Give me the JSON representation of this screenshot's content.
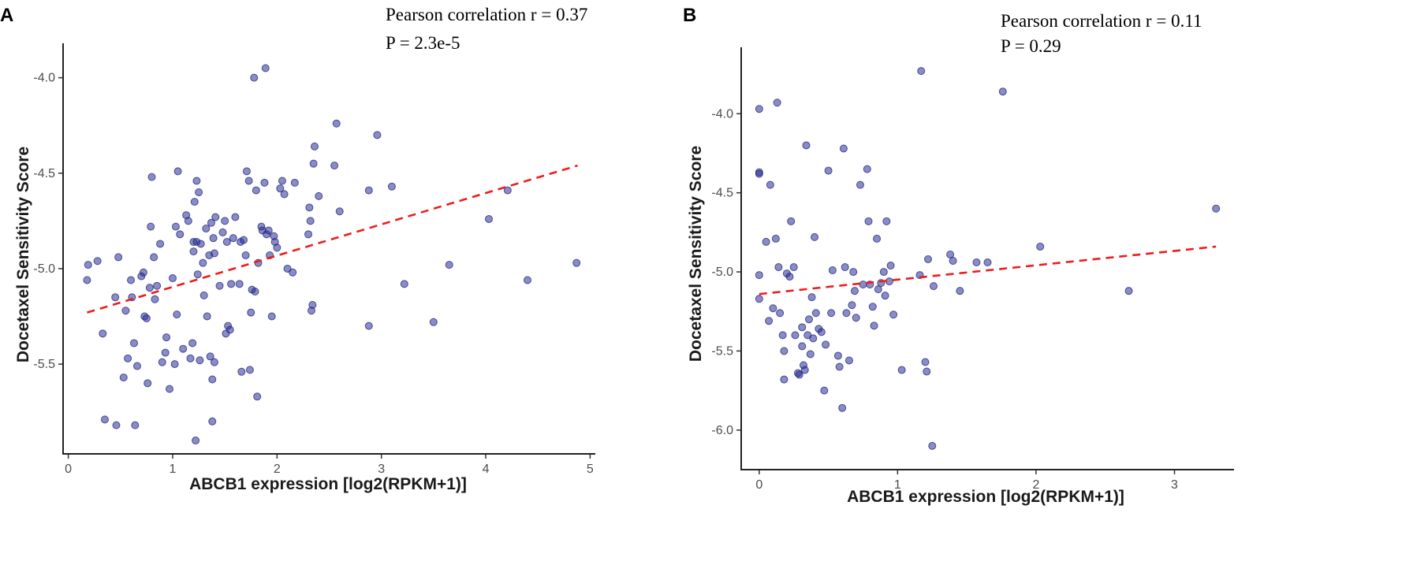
{
  "chart_data": [
    {
      "type": "scatter",
      "panel": "A",
      "xlabel": "ABCB1 expression [log2(RPKM+1)]",
      "ylabel": "Docetaxel Sensitivity Score",
      "annotations": [
        "Pearson correlation r = 0.37",
        "P = 2.3e-5"
      ],
      "xlim": [
        -0.05,
        5.05
      ],
      "ylim": [
        -5.97,
        -3.82
      ],
      "xticks": [
        0,
        1,
        2,
        3,
        4,
        5
      ],
      "yticks": [
        -4.0,
        -4.5,
        -5.0,
        -5.5
      ],
      "ytick_labels": [
        "-4.0",
        "-4.5",
        "-5.0",
        "-5.5"
      ],
      "fit_line": {
        "x": [
          0.18,
          4.88
        ],
        "y": [
          -5.23,
          -4.46
        ],
        "color": "#ee1c1c",
        "style": "dashed"
      },
      "point_color": "#2e3596",
      "points": [
        [
          0.18,
          -5.06
        ],
        [
          0.19,
          -4.98
        ],
        [
          0.28,
          -4.96
        ],
        [
          0.33,
          -5.34
        ],
        [
          0.35,
          -5.79
        ],
        [
          0.45,
          -5.15
        ],
        [
          0.46,
          -5.82
        ],
        [
          0.48,
          -4.94
        ],
        [
          0.53,
          -5.57
        ],
        [
          0.55,
          -5.22
        ],
        [
          0.57,
          -5.47
        ],
        [
          0.6,
          -5.06
        ],
        [
          0.61,
          -5.15
        ],
        [
          0.63,
          -5.39
        ],
        [
          0.64,
          -5.82
        ],
        [
          0.66,
          -5.51
        ],
        [
          0.7,
          -5.04
        ],
        [
          0.72,
          -5.02
        ],
        [
          0.73,
          -5.25
        ],
        [
          0.75,
          -5.26
        ],
        [
          0.76,
          -5.6
        ],
        [
          0.78,
          -5.1
        ],
        [
          0.79,
          -4.78
        ],
        [
          0.8,
          -4.52
        ],
        [
          0.82,
          -4.94
        ],
        [
          0.83,
          -5.16
        ],
        [
          0.85,
          -5.09
        ],
        [
          0.88,
          -4.87
        ],
        [
          0.9,
          -5.49
        ],
        [
          0.93,
          -5.44
        ],
        [
          0.94,
          -5.36
        ],
        [
          0.97,
          -5.63
        ],
        [
          1.0,
          -5.05
        ],
        [
          1.02,
          -5.5
        ],
        [
          1.03,
          -4.78
        ],
        [
          1.04,
          -5.24
        ],
        [
          1.05,
          -4.49
        ],
        [
          1.07,
          -4.82
        ],
        [
          1.1,
          -5.42
        ],
        [
          1.13,
          -4.72
        ],
        [
          1.15,
          -4.75
        ],
        [
          1.17,
          -5.47
        ],
        [
          1.19,
          -5.39
        ],
        [
          1.2,
          -4.86
        ],
        [
          1.2,
          -4.91
        ],
        [
          1.21,
          -4.65
        ],
        [
          1.22,
          -5.9
        ],
        [
          1.23,
          -4.86
        ],
        [
          1.23,
          -4.54
        ],
        [
          1.24,
          -5.03
        ],
        [
          1.25,
          -4.6
        ],
        [
          1.26,
          -5.48
        ],
        [
          1.27,
          -4.87
        ],
        [
          1.29,
          -4.97
        ],
        [
          1.3,
          -5.14
        ],
        [
          1.32,
          -4.79
        ],
        [
          1.33,
          -5.25
        ],
        [
          1.35,
          -4.93
        ],
        [
          1.36,
          -5.46
        ],
        [
          1.37,
          -4.76
        ],
        [
          1.38,
          -5.8
        ],
        [
          1.38,
          -5.58
        ],
        [
          1.39,
          -4.84
        ],
        [
          1.4,
          -4.92
        ],
        [
          1.4,
          -5.49
        ],
        [
          1.41,
          -4.73
        ],
        [
          1.45,
          -5.09
        ],
        [
          1.48,
          -4.81
        ],
        [
          1.5,
          -4.75
        ],
        [
          1.51,
          -5.34
        ],
        [
          1.52,
          -4.86
        ],
        [
          1.53,
          -5.3
        ],
        [
          1.55,
          -5.32
        ],
        [
          1.56,
          -5.08
        ],
        [
          1.58,
          -4.84
        ],
        [
          1.6,
          -4.73
        ],
        [
          1.64,
          -5.08
        ],
        [
          1.65,
          -4.86
        ],
        [
          1.66,
          -5.54
        ],
        [
          1.68,
          -4.85
        ],
        [
          1.7,
          -4.93
        ],
        [
          1.71,
          -4.49
        ],
        [
          1.73,
          -4.54
        ],
        [
          1.74,
          -5.53
        ],
        [
          1.75,
          -5.23
        ],
        [
          1.76,
          -5.11
        ],
        [
          1.78,
          -4.0
        ],
        [
          1.79,
          -5.12
        ],
        [
          1.8,
          -4.59
        ],
        [
          1.81,
          -5.67
        ],
        [
          1.82,
          -4.97
        ],
        [
          1.85,
          -4.78
        ],
        [
          1.86,
          -4.8
        ],
        [
          1.88,
          -4.55
        ],
        [
          1.89,
          -3.95
        ],
        [
          1.9,
          -4.82
        ],
        [
          1.92,
          -4.8
        ],
        [
          1.93,
          -4.93
        ],
        [
          1.95,
          -5.25
        ],
        [
          1.97,
          -4.83
        ],
        [
          1.98,
          -4.86
        ],
        [
          2.0,
          -4.89
        ],
        [
          2.03,
          -4.58
        ],
        [
          2.05,
          -4.54
        ],
        [
          2.07,
          -4.61
        ],
        [
          2.1,
          -5.0
        ],
        [
          2.15,
          -5.02
        ],
        [
          2.17,
          -4.55
        ],
        [
          2.3,
          -4.82
        ],
        [
          2.31,
          -4.68
        ],
        [
          2.32,
          -4.75
        ],
        [
          2.33,
          -5.22
        ],
        [
          2.34,
          -5.19
        ],
        [
          2.35,
          -4.45
        ],
        [
          2.36,
          -4.36
        ],
        [
          2.4,
          -4.62
        ],
        [
          2.55,
          -4.46
        ],
        [
          2.57,
          -4.24
        ],
        [
          2.6,
          -4.7
        ],
        [
          2.88,
          -4.59
        ],
        [
          2.88,
          -5.3
        ],
        [
          2.96,
          -4.3
        ],
        [
          3.1,
          -4.57
        ],
        [
          3.22,
          -5.08
        ],
        [
          3.5,
          -5.28
        ],
        [
          3.65,
          -4.98
        ],
        [
          4.03,
          -4.74
        ],
        [
          4.21,
          -4.59
        ],
        [
          4.4,
          -5.06
        ],
        [
          4.87,
          -4.97
        ]
      ]
    },
    {
      "type": "scatter",
      "panel": "B",
      "xlabel": "ABCB1 expression [log2(RPKM+1)]",
      "ylabel": "Docetaxel Sensitivity Score",
      "annotations": [
        "Pearson correlation r = 0.11",
        "P = 0.29"
      ],
      "xlim": [
        -0.13,
        3.43
      ],
      "ylim": [
        -6.25,
        -3.58
      ],
      "xticks": [
        0,
        1,
        2,
        3
      ],
      "yticks": [
        -4.0,
        -4.5,
        -5.0,
        -5.5,
        -6.0
      ],
      "ytick_labels": [
        "-4.0",
        "-4.5",
        "-5.0",
        "-5.5",
        "-6.0"
      ],
      "fit_line": {
        "x": [
          0.0,
          3.3
        ],
        "y": [
          -5.14,
          -4.84
        ],
        "color": "#ee1c1c",
        "style": "dashed"
      },
      "point_color": "#2e3596",
      "points": [
        [
          0.0,
          -3.97
        ],
        [
          0.0,
          -4.37
        ],
        [
          0.0,
          -4.38
        ],
        [
          0.0,
          -5.02
        ],
        [
          0.0,
          -5.17
        ],
        [
          0.05,
          -4.81
        ],
        [
          0.07,
          -5.31
        ],
        [
          0.08,
          -4.45
        ],
        [
          0.1,
          -5.23
        ],
        [
          0.12,
          -4.79
        ],
        [
          0.13,
          -3.93
        ],
        [
          0.14,
          -4.97
        ],
        [
          0.15,
          -5.26
        ],
        [
          0.17,
          -5.4
        ],
        [
          0.18,
          -5.68
        ],
        [
          0.18,
          -5.5
        ],
        [
          0.2,
          -5.01
        ],
        [
          0.22,
          -5.03
        ],
        [
          0.23,
          -4.68
        ],
        [
          0.25,
          -4.97
        ],
        [
          0.26,
          -5.4
        ],
        [
          0.28,
          -5.64
        ],
        [
          0.29,
          -5.65
        ],
        [
          0.31,
          -5.47
        ],
        [
          0.31,
          -5.35
        ],
        [
          0.32,
          -5.59
        ],
        [
          0.33,
          -5.62
        ],
        [
          0.34,
          -4.2
        ],
        [
          0.35,
          -5.4
        ],
        [
          0.36,
          -5.3
        ],
        [
          0.37,
          -5.52
        ],
        [
          0.38,
          -5.16
        ],
        [
          0.39,
          -5.42
        ],
        [
          0.4,
          -4.78
        ],
        [
          0.41,
          -5.26
        ],
        [
          0.43,
          -5.36
        ],
        [
          0.45,
          -5.38
        ],
        [
          0.47,
          -5.75
        ],
        [
          0.48,
          -5.46
        ],
        [
          0.5,
          -4.36
        ],
        [
          0.52,
          -5.26
        ],
        [
          0.53,
          -4.99
        ],
        [
          0.57,
          -5.53
        ],
        [
          0.58,
          -5.6
        ],
        [
          0.6,
          -5.86
        ],
        [
          0.61,
          -4.22
        ],
        [
          0.62,
          -4.97
        ],
        [
          0.63,
          -5.26
        ],
        [
          0.65,
          -5.56
        ],
        [
          0.67,
          -5.21
        ],
        [
          0.68,
          -5.0
        ],
        [
          0.69,
          -5.12
        ],
        [
          0.7,
          -5.29
        ],
        [
          0.73,
          -4.45
        ],
        [
          0.75,
          -5.08
        ],
        [
          0.78,
          -4.35
        ],
        [
          0.79,
          -4.68
        ],
        [
          0.8,
          -5.08
        ],
        [
          0.82,
          -5.22
        ],
        [
          0.83,
          -5.34
        ],
        [
          0.85,
          -4.79
        ],
        [
          0.86,
          -5.11
        ],
        [
          0.88,
          -5.07
        ],
        [
          0.9,
          -5.0
        ],
        [
          0.91,
          -5.15
        ],
        [
          0.92,
          -4.68
        ],
        [
          0.94,
          -5.06
        ],
        [
          0.95,
          -4.96
        ],
        [
          0.97,
          -5.27
        ],
        [
          1.03,
          -5.62
        ],
        [
          1.16,
          -5.02
        ],
        [
          1.17,
          -3.73
        ],
        [
          1.2,
          -5.57
        ],
        [
          1.21,
          -5.63
        ],
        [
          1.22,
          -4.92
        ],
        [
          1.25,
          -6.1
        ],
        [
          1.26,
          -5.09
        ],
        [
          1.38,
          -4.89
        ],
        [
          1.4,
          -4.93
        ],
        [
          1.45,
          -5.12
        ],
        [
          1.57,
          -4.94
        ],
        [
          1.65,
          -4.94
        ],
        [
          1.76,
          -3.86
        ],
        [
          2.03,
          -4.84
        ],
        [
          2.67,
          -5.12
        ],
        [
          3.3,
          -4.6
        ]
      ]
    }
  ]
}
